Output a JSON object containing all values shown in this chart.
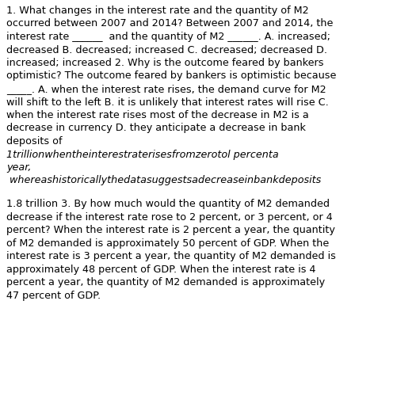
{
  "background_color": "#ffffff",
  "text_color": "#000000",
  "font_size": 9.2,
  "font_size_italic": 9.2,
  "line1": "1. What changes in the interest rate and the quantity of M2",
  "line2": "occurred between 2007 and 2014? Between 2007 and 2014, the",
  "line3": "interest rate ______  and the quantity of M2 ______. A. increased;",
  "line4": "decreased B. decreased; increased C. decreased; decreased D.",
  "line5": "increased; increased 2. Why is the outcome feared by bankers",
  "line6": "optimistic? The outcome feared by bankers is optimistic because",
  "line7": "_____. A. when the interest rate rises, the demand curve for M2",
  "line8": "will shift to the left B. it is unlikely that interest rates will rise C.",
  "line9": "when the interest rate rises most of the decrease in M2 is a",
  "line10": "decrease in currency D. they anticipate a decrease in bank",
  "line11": "deposits of",
  "italic_line1": "1trillionwhentheinterestraterisesfromzerotol percenta",
  "italic_line2": "year,",
  "italic_line3": " whereashistoricallythedatasuggestsadecreaseinbankdeposits",
  "normal_line1": "1.8 trillion 3. By how much would the quantity of M2 demanded",
  "normal_line2": "decrease if the interest rate rose to 2 percent, or 3 percent, or 4",
  "normal_line3": "percent? When the interest rate is 2 percent a year, the quantity",
  "normal_line4": "of M2 demanded is approximately 50 percent of GDP. When the",
  "normal_line5": "interest rate is 3 percent a year, the quantity of M2 demanded is",
  "normal_line6": "approximately 48 percent of GDP. When the interest rate is 4",
  "normal_line7": "percent a year, the quantity of M2 demanded is approximately",
  "normal_line8": "47 percent of GDP."
}
